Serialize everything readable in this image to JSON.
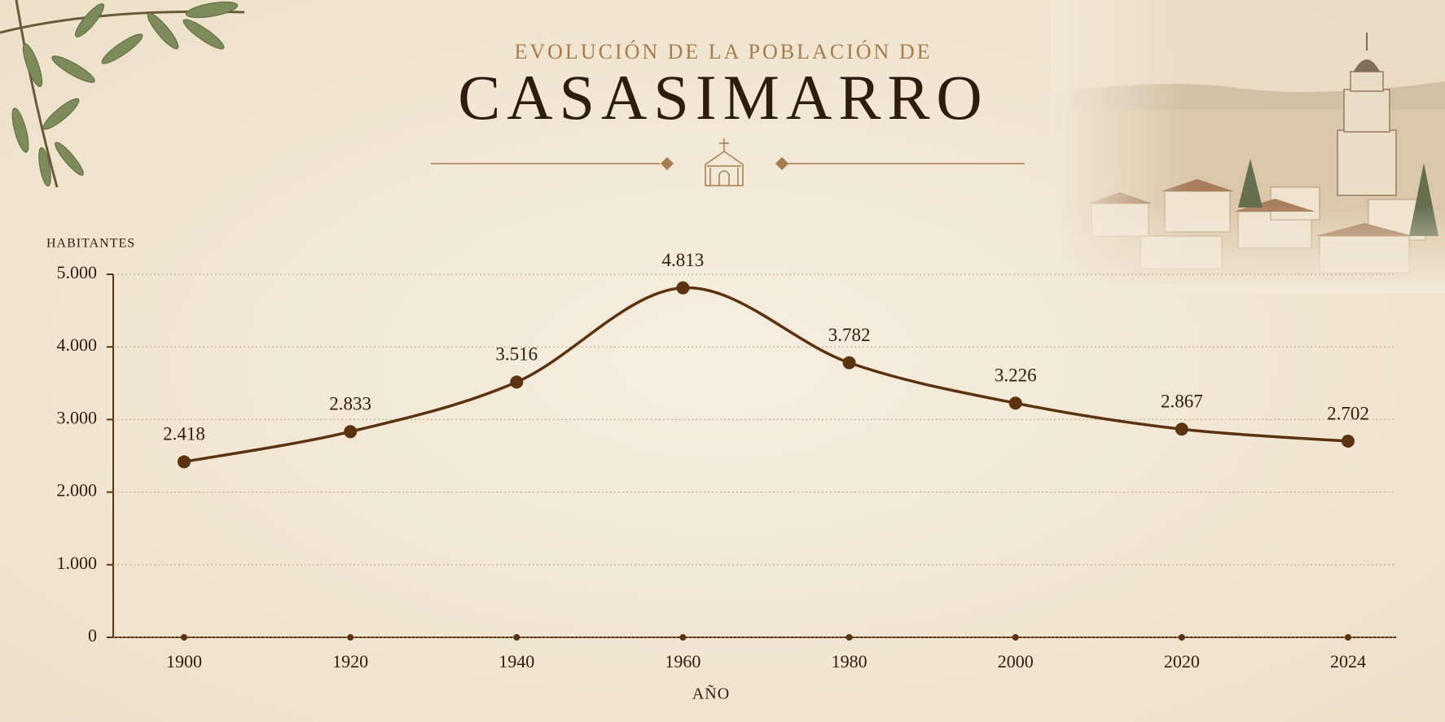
{
  "chart_data": {
    "type": "line",
    "title": "EVOLUCIÓN DE LA POBLACIÓN DE",
    "subtitle": "CASASIMARRO",
    "y_label": "HABITANTES",
    "x_label": "AÑO",
    "categories": [
      "1900",
      "1920",
      "1940",
      "1960",
      "1980",
      "2000",
      "2020",
      "2024"
    ],
    "series": [
      {
        "name": "Habitantes",
        "color": "#5c3310",
        "values": [
          2418,
          2833,
          3516,
          4813,
          3782,
          3226,
          2867,
          2702
        ],
        "value_labels": [
          "2.418",
          "2.833",
          "3.516",
          "4.813",
          "3.782",
          "3.226",
          "2.867",
          "2.702"
        ]
      }
    ],
    "ylim": [
      0,
      5000
    ],
    "yticks": [
      0,
      {
        "value": 1000,
        "label": "1.000"
      },
      {
        "value": 2000,
        "label": "2.000"
      },
      {
        "value": 3000,
        "label": "3.000"
      },
      {
        "value": 4000,
        "label": "4.000"
      },
      {
        "value": 5000,
        "label": "5.000"
      }
    ],
    "grid": true
  }
}
